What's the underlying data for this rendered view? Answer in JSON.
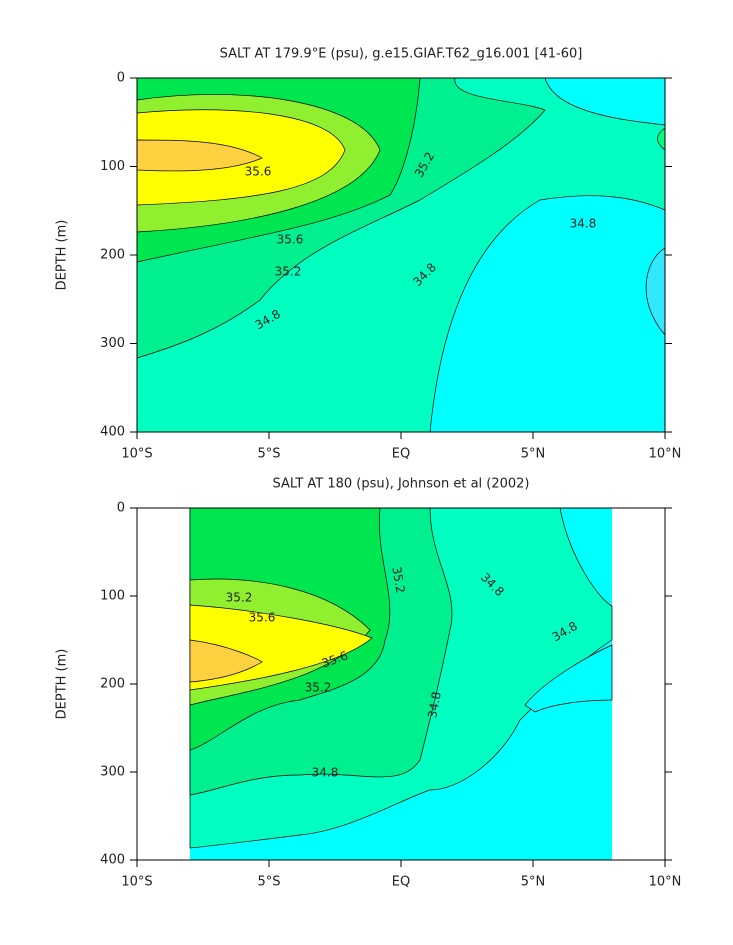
{
  "chart_data": [
    {
      "type": "contour",
      "title": "SALT AT 179.9°E (psu), g.e15.GIAF.T62_g16.001 [41-60]",
      "y_label": "DEPTH (m)",
      "xlim": [
        -10,
        10
      ],
      "xticks": [
        {
          "value": -10,
          "label": "10°S"
        },
        {
          "value": -5,
          "label": "5°S"
        },
        {
          "value": 0,
          "label": "EQ"
        },
        {
          "value": 5,
          "label": "5°N"
        },
        {
          "value": 10,
          "label": "10°N"
        }
      ],
      "ylim": [
        0,
        400
      ],
      "y_inverted": true,
      "yticks": [
        0,
        100,
        200,
        300,
        400
      ],
      "contour_labels": [
        35.6,
        35.6,
        35.2,
        35.2,
        34.8,
        34.8,
        34.8
      ]
    },
    {
      "type": "contour",
      "title": "SALT AT 180 (psu), Johnson et al (2002)",
      "y_label": "DEPTH (m)",
      "xlim": [
        -10,
        10
      ],
      "xticks": [
        {
          "value": -10,
          "label": "10°S"
        },
        {
          "value": -5,
          "label": "5°S"
        },
        {
          "value": 0,
          "label": "EQ"
        },
        {
          "value": 5,
          "label": "5°N"
        },
        {
          "value": 10,
          "label": "10°N"
        }
      ],
      "ylim": [
        0,
        400
      ],
      "y_inverted": true,
      "yticks": [
        0,
        100,
        200,
        300,
        400
      ],
      "contour_labels": [
        35.2,
        35.6,
        35.6,
        35.2,
        35.2,
        34.8,
        34.8,
        34.8,
        34.8
      ]
    }
  ]
}
